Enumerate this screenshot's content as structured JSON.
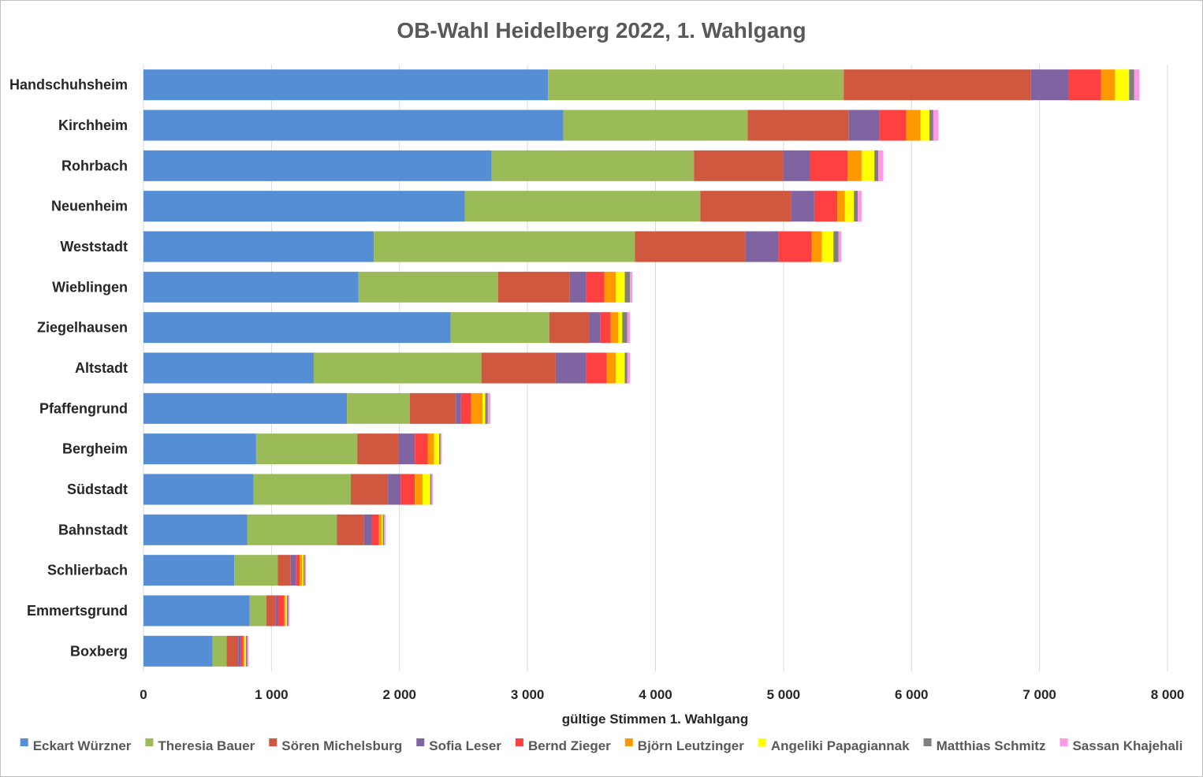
{
  "chart_data": {
    "type": "bar",
    "orientation": "horizontal",
    "stacked": true,
    "title": "OB-Wahl Heidelberg 2022, 1. Wahlgang",
    "xlabel": "gültige Stimmen 1. Wahlgang",
    "ylabel": "",
    "xlim": [
      0,
      8000
    ],
    "xticks": [
      0,
      1000,
      2000,
      3000,
      4000,
      5000,
      6000,
      7000,
      8000
    ],
    "xtick_labels": [
      "0",
      "1 000",
      "2 000",
      "3 000",
      "4 000",
      "5 000",
      "6 000",
      "7 000",
      "8 000"
    ],
    "grid": true,
    "legend_position": "bottom",
    "categories": [
      "Handschuhsheim",
      "Kirchheim",
      "Rohrbach",
      "Neuenheim",
      "Weststadt",
      "Wieblingen",
      "Ziegelhausen",
      "Altstadt",
      "Pfaffengrund",
      "Bergheim",
      "Südstadt",
      "Bahnstadt",
      "Schlierbach",
      "Emmertsgrund",
      "Boxberg"
    ],
    "series": [
      {
        "name": "Eckart Würzner",
        "color": "#558ed5",
        "values": [
          3160,
          3280,
          2720,
          2510,
          1800,
          1680,
          2400,
          1330,
          1590,
          880,
          860,
          810,
          710,
          830,
          540
        ]
      },
      {
        "name": "Theresia Bauer",
        "color": "#9bbb59",
        "values": [
          2310,
          1440,
          1580,
          1840,
          2040,
          1090,
          770,
          1310,
          490,
          790,
          760,
          700,
          340,
          130,
          110
        ]
      },
      {
        "name": "Sören Michelsburg",
        "color": "#d0583f",
        "values": [
          1460,
          790,
          700,
          710,
          860,
          560,
          310,
          580,
          360,
          320,
          290,
          210,
          100,
          70,
          90
        ]
      },
      {
        "name": "Sofia Leser",
        "color": "#8064a2",
        "values": [
          300,
          240,
          210,
          180,
          260,
          130,
          90,
          240,
          40,
          130,
          100,
          60,
          40,
          20,
          20
        ]
      },
      {
        "name": "Bernd Zieger",
        "color": "#ff4040",
        "values": [
          250,
          210,
          290,
          180,
          260,
          140,
          80,
          160,
          80,
          100,
          110,
          60,
          30,
          50,
          20
        ]
      },
      {
        "name": "Björn Leutzinger",
        "color": "#ff9900",
        "values": [
          110,
          110,
          110,
          60,
          80,
          90,
          60,
          70,
          90,
          50,
          60,
          20,
          20,
          10,
          10
        ]
      },
      {
        "name": "Angeliki Papagiannak",
        "color": "#ffff00",
        "values": [
          110,
          70,
          100,
          70,
          90,
          70,
          30,
          70,
          20,
          40,
          60,
          10,
          10,
          10,
          10
        ]
      },
      {
        "name": "Matthias Schmitz",
        "color": "#7f7f7f",
        "values": [
          40,
          30,
          30,
          30,
          40,
          40,
          40,
          20,
          20,
          10,
          10,
          10,
          10,
          10,
          10
        ]
      },
      {
        "name": "Sassan Khajehali",
        "color": "#ff99e5",
        "values": [
          40,
          40,
          40,
          30,
          20,
          20,
          20,
          20,
          20,
          10,
          10,
          10,
          10,
          10,
          10
        ]
      }
    ]
  }
}
